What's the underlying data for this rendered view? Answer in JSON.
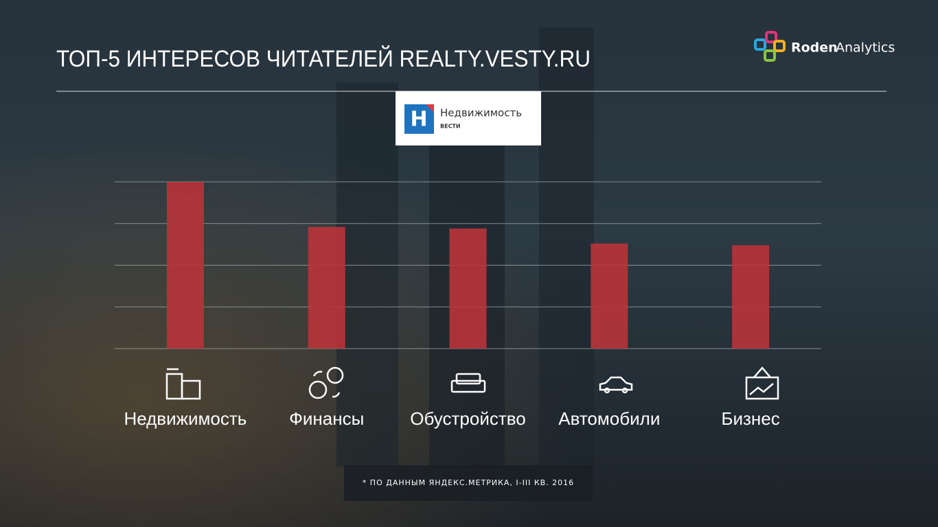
{
  "header": {
    "title": "ТОП-5 ИНТЕРЕСОВ ЧИТАТЕЛЕЙ REALTY.VESTY.RU"
  },
  "brand": {
    "name_bold": "Roden",
    "name_light": "Analytics"
  },
  "source_logo": {
    "name": "Недвижимость",
    "sub": "ВЕСТИ"
  },
  "footnote": "* ПО ДАННЫМ ЯНДЕКС.МЕТРИКА, I-III КВ. 2016",
  "chart_data": {
    "type": "bar",
    "categories": [
      "Недвижимость",
      "Финансы",
      "Обустройство",
      "Автомобили",
      "Бизнес"
    ],
    "values": [
      100,
      73,
      72,
      63,
      62
    ],
    "color": "#b8343a",
    "ylim": [
      0,
      100
    ],
    "yticks": [
      0,
      25,
      50,
      75,
      100
    ],
    "grid": true
  }
}
